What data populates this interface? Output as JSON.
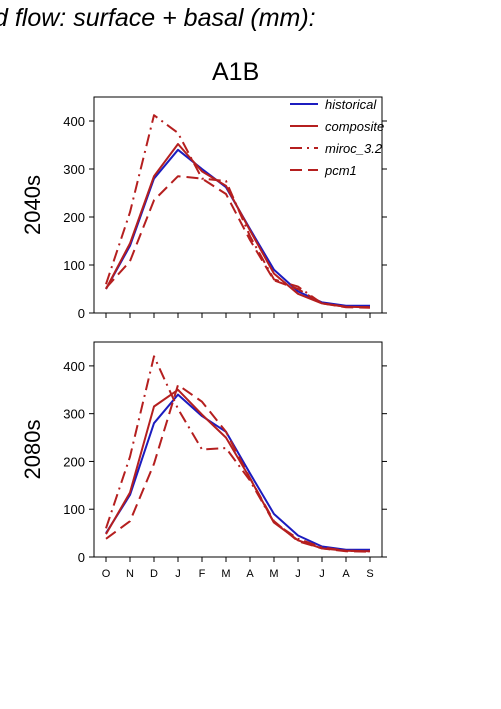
{
  "page": {
    "title": "d flow: surface + basal (mm):",
    "scenario": "A1B"
  },
  "chart_data": [
    {
      "type": "line",
      "row_label": "2040s",
      "categories": [
        "O",
        "N",
        "D",
        "J",
        "F",
        "M",
        "A",
        "M",
        "J",
        "J",
        "A",
        "S"
      ],
      "ylim": [
        0,
        450
      ],
      "yticks": [
        0,
        100,
        200,
        300,
        400
      ],
      "show_x_tick_labels": false,
      "legend_placement": "top-right",
      "series": [
        {
          "name": "historical",
          "color": "#1c1cbf",
          "dash": "solid",
          "values": [
            50,
            140,
            280,
            340,
            300,
            262,
            175,
            90,
            45,
            22,
            15,
            15
          ]
        },
        {
          "name": "composite",
          "color": "#b51f1f",
          "dash": "solid",
          "values": [
            50,
            145,
            285,
            352,
            295,
            265,
            172,
            82,
            40,
            20,
            13,
            12
          ]
        },
        {
          "name": "miroc_3.2",
          "color": "#b51f1f",
          "dash": "dashdot",
          "values": [
            60,
            210,
            412,
            375,
            280,
            275,
            160,
            70,
            55,
            20,
            13,
            12
          ]
        },
        {
          "name": "pcm1",
          "color": "#b51f1f",
          "dash": "dashed",
          "values": [
            52,
            108,
            235,
            285,
            280,
            248,
            152,
            68,
            50,
            20,
            12,
            11
          ]
        }
      ]
    },
    {
      "type": "line",
      "row_label": "2080s",
      "categories": [
        "O",
        "N",
        "D",
        "J",
        "F",
        "M",
        "A",
        "M",
        "J",
        "J",
        "A",
        "S"
      ],
      "ylim": [
        0,
        450
      ],
      "yticks": [
        0,
        100,
        200,
        300,
        400
      ],
      "show_x_tick_labels": true,
      "series": [
        {
          "name": "historical",
          "color": "#1c1cbf",
          "dash": "solid",
          "values": [
            50,
            130,
            280,
            340,
            295,
            262,
            175,
            90,
            45,
            22,
            15,
            15
          ]
        },
        {
          "name": "composite",
          "color": "#b51f1f",
          "dash": "solid",
          "values": [
            48,
            135,
            315,
            350,
            298,
            250,
            165,
            72,
            35,
            18,
            13,
            12
          ]
        },
        {
          "name": "miroc_3.2",
          "color": "#b51f1f",
          "dash": "dashdot",
          "values": [
            60,
            210,
            420,
            310,
            225,
            228,
            160,
            72,
            38,
            20,
            13,
            12
          ]
        },
        {
          "name": "pcm1",
          "color": "#b51f1f",
          "dash": "dashed",
          "values": [
            38,
            75,
            195,
            360,
            325,
            262,
            165,
            75,
            33,
            18,
            12,
            11
          ]
        }
      ]
    }
  ]
}
